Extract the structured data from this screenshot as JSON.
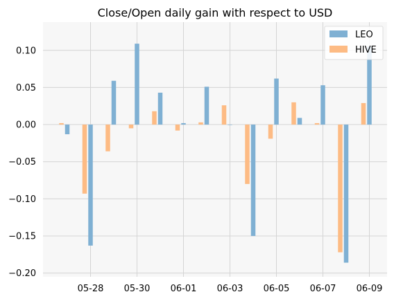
{
  "chart_data": {
    "type": "bar",
    "title": "Close/Open daily gain with respect to USD",
    "xlabel": "",
    "ylabel": "",
    "x_dates": [
      "2023-05-27",
      "2023-05-28",
      "2023-05-29",
      "2023-05-30",
      "2023-05-31",
      "2023-06-01",
      "2023-06-02",
      "2023-06-03",
      "2023-06-04",
      "2023-06-05",
      "2023-06-06",
      "2023-06-07",
      "2023-06-08",
      "2023-06-09"
    ],
    "x_ticks": [
      "05-28",
      "05-30",
      "06-01",
      "06-03",
      "06-05",
      "06-07",
      "06-09"
    ],
    "y_ticks": [
      "0.10",
      "0.05",
      "0.00",
      "−0.05",
      "−0.10",
      "−0.15",
      "−0.20"
    ],
    "y_tick_values": [
      0.1,
      0.05,
      0.0,
      -0.05,
      -0.1,
      -0.15,
      -0.2
    ],
    "ylim": [
      -0.205,
      0.138
    ],
    "grid": true,
    "legend_position": "top-right",
    "series": [
      {
        "name": "LEO",
        "color": "#7fb0d3",
        "values": [
          -0.013,
          -0.163,
          0.059,
          0.109,
          0.043,
          0.002,
          0.051,
          0.0,
          -0.15,
          0.062,
          0.009,
          0.053,
          -0.186,
          0.105
        ]
      },
      {
        "name": "HIVE",
        "color": "#fdbb84",
        "values": [
          0.002,
          -0.093,
          -0.036,
          -0.005,
          0.018,
          -0.008,
          0.003,
          0.026,
          -0.08,
          -0.019,
          0.03,
          0.002,
          -0.172,
          0.029
        ]
      }
    ]
  }
}
